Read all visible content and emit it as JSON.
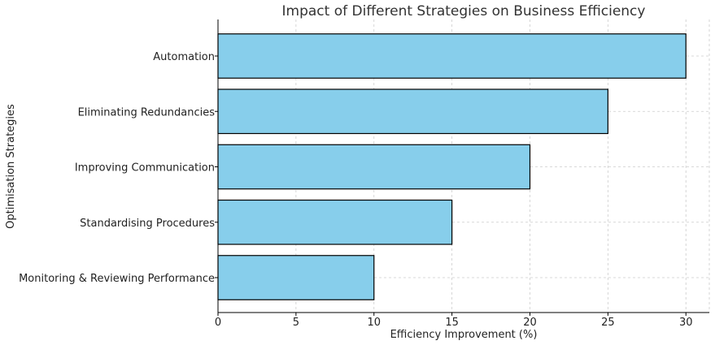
{
  "colors": {
    "bar_fill": "#87ceeb",
    "bar_stroke": "#000000",
    "grid": "#cccccc",
    "axis": "#000000"
  },
  "chart_data": {
    "type": "bar",
    "orientation": "horizontal",
    "title": "Impact of Different Strategies on Business Efficiency",
    "xlabel": "Efficiency Improvement (%)",
    "ylabel": "Optimisation Strategies",
    "categories": [
      "Automation",
      "Eliminating Redundancies",
      "Improving Communication",
      "Standardising Procedures",
      "Monitoring & Reviewing Performance"
    ],
    "values": [
      30,
      25,
      20,
      15,
      10
    ],
    "xlim": [
      0,
      31.5
    ],
    "xticks": [
      0,
      5,
      10,
      15,
      20,
      25,
      30
    ],
    "grid": true,
    "grid_style": "dashed"
  }
}
